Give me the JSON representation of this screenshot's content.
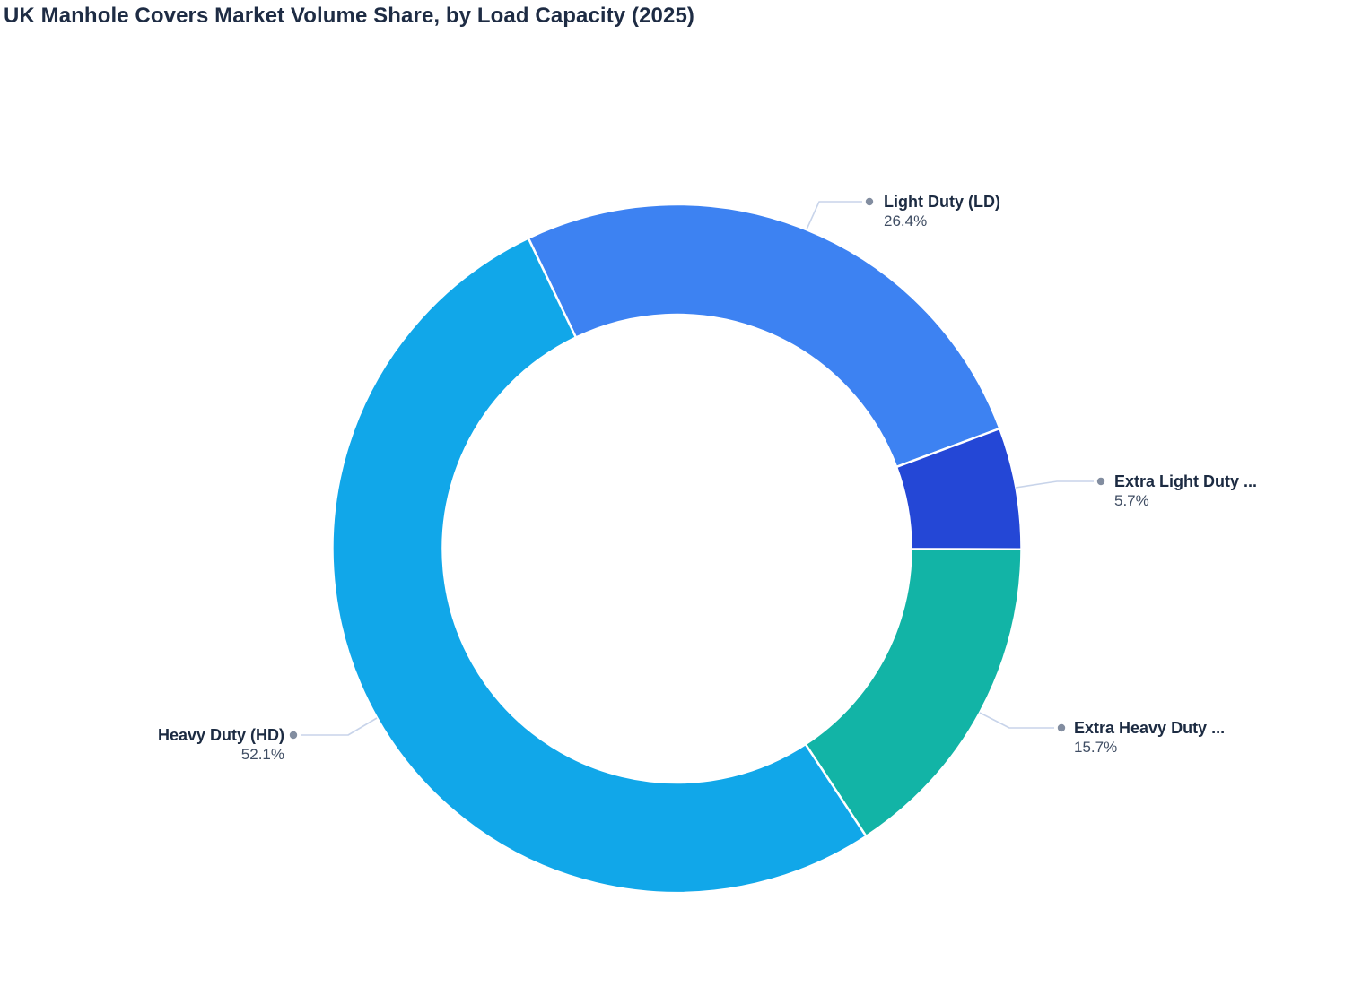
{
  "page": {
    "background": "#ffffff"
  },
  "chart_data": {
    "type": "pie",
    "subtype": "donut",
    "title": "UK Manhole Covers Market Volume Share, by Load Capacity (2025)",
    "legend": "none",
    "labels_position": "outside-with-leader-lines",
    "hole_ratio": 0.68,
    "start_angle_deg": -25.56,
    "direction": "clockwise",
    "slices": [
      {
        "id": "light-duty",
        "label": "Light Duty (LD)",
        "value": 26.4,
        "pct_label": "26.4%",
        "color": "#3d82f2"
      },
      {
        "id": "extra-light-duty",
        "label": "Extra Light Duty ...",
        "value": 5.7,
        "pct_label": "5.7%",
        "color": "#2447d6"
      },
      {
        "id": "extra-heavy-duty",
        "label": "Extra Heavy Duty ...",
        "value": 15.7,
        "pct_label": "15.7%",
        "color": "#12b4a6"
      },
      {
        "id": "heavy-duty",
        "label": "Heavy Duty (HD)",
        "value": 52.1,
        "pct_label": "52.1%",
        "color": "#11a7e9"
      }
    ]
  },
  "colors": {
    "title_text": "#1e2c44",
    "label_text": "#1c2b42",
    "pct_text": "#3f4d63",
    "leader_line": "#c8d4ea",
    "leader_dot": "#828da0",
    "slice_border": "#ffffff"
  }
}
